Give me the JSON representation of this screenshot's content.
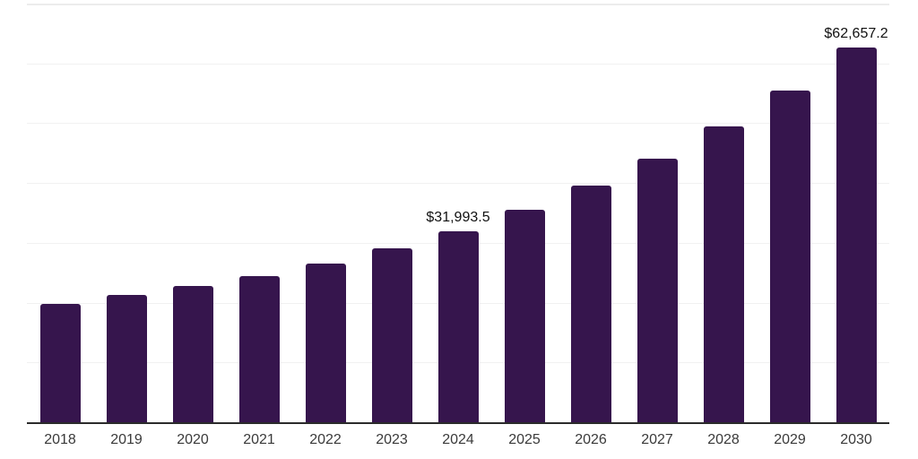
{
  "chart_data": {
    "type": "bar",
    "title": "",
    "xlabel": "",
    "ylabel": "",
    "categories": [
      "2018",
      "2019",
      "2020",
      "2021",
      "2022",
      "2023",
      "2024",
      "2025",
      "2026",
      "2027",
      "2028",
      "2029",
      "2030"
    ],
    "values": [
      19800,
      21300,
      22800,
      24500,
      26600,
      29100,
      31993.5,
      35500,
      39500,
      44000,
      49400,
      55500,
      62657.2
    ],
    "value_labels": [
      "",
      "",
      "",
      "",
      "",
      "",
      "$31,993.5",
      "",
      "",
      "",
      "",
      "",
      "$62,657.2"
    ],
    "ylim": [
      0,
      70000
    ],
    "gridline_step": 10000,
    "grid": "horizontal-light",
    "legend": "none",
    "y_axis_ticks_visible": false,
    "colors": {
      "bar": "#36154d",
      "axis_line": "#2b2b2b",
      "gridline": "#f1f1f1",
      "top_gridline": "#ececec",
      "x_tick_label": "#3a3a3a",
      "data_label": "#111111",
      "background": "#ffffff"
    }
  }
}
